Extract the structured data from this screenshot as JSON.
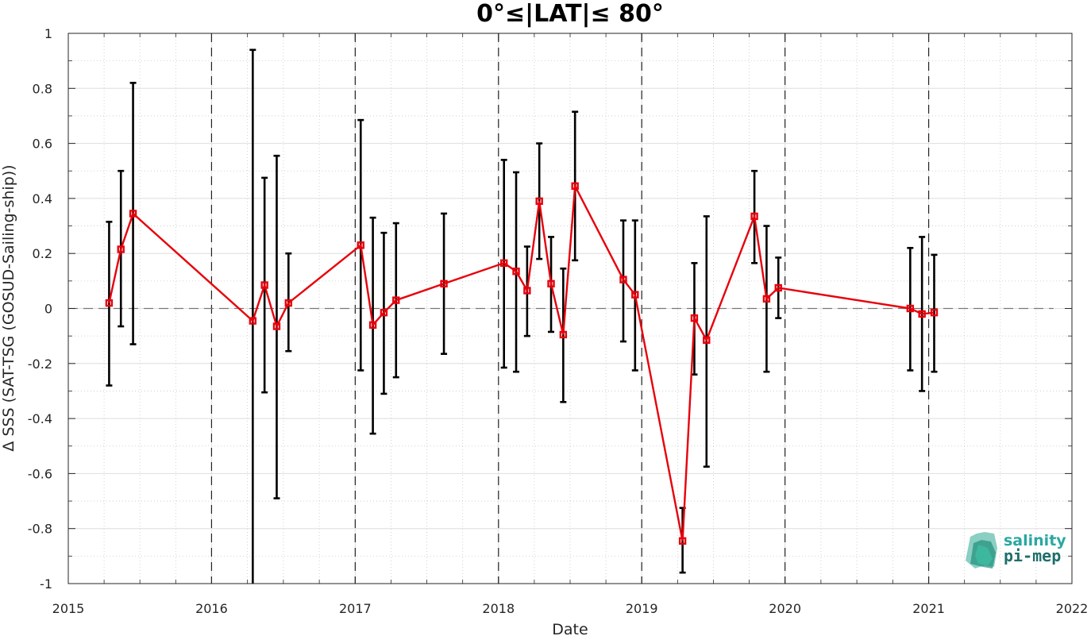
{
  "chart_data": {
    "type": "line",
    "title": "0°≤|LAT|≤ 80°",
    "xlabel": "Date",
    "ylabel": "Δ SSS (SAT-TSG (GOSUD-Sailing-ship))",
    "xlim": [
      "2015-01-01",
      "2022-01-01"
    ],
    "ylim": [
      -1,
      1
    ],
    "x_ticks": [
      "2015",
      "2016",
      "2017",
      "2018",
      "2019",
      "2020",
      "2021",
      "2022"
    ],
    "y_ticks": [
      "1",
      "0.8",
      "0.6",
      "0.4",
      "0.2",
      "0",
      "-0.2",
      "-0.4",
      "-0.6",
      "-0.8",
      "-1"
    ],
    "grid": true,
    "reference_line": 0,
    "year_markers": [
      "2016-01-01",
      "2017-01-01",
      "2018-01-01",
      "2019-01-01",
      "2020-01-01",
      "2021-01-01"
    ],
    "series": [
      {
        "color": "#e8000b",
        "errorbar_color": "#000000",
        "points": [
          {
            "x": "2015-04-15",
            "y": 0.02,
            "low": -0.28,
            "high": 0.315
          },
          {
            "x": "2015-05-15",
            "y": 0.215,
            "low": -0.065,
            "high": 0.5
          },
          {
            "x": "2015-06-15",
            "y": 0.345,
            "low": -0.13,
            "high": 0.82
          },
          {
            "x": "2016-04-15",
            "y": -0.045,
            "low": -1.0,
            "high": 0.94
          },
          {
            "x": "2016-05-15",
            "y": 0.085,
            "low": -0.305,
            "high": 0.475
          },
          {
            "x": "2016-06-15",
            "y": -0.065,
            "low": -0.69,
            "high": 0.555
          },
          {
            "x": "2016-07-15",
            "y": 0.02,
            "low": -0.155,
            "high": 0.2
          },
          {
            "x": "2017-01-15",
            "y": 0.23,
            "low": -0.225,
            "high": 0.685
          },
          {
            "x": "2017-02-15",
            "y": -0.06,
            "low": -0.455,
            "high": 0.33
          },
          {
            "x": "2017-03-15",
            "y": -0.015,
            "low": -0.31,
            "high": 0.275
          },
          {
            "x": "2017-04-15",
            "y": 0.03,
            "low": -0.25,
            "high": 0.31
          },
          {
            "x": "2017-08-15",
            "y": 0.09,
            "low": -0.165,
            "high": 0.345
          },
          {
            "x": "2018-01-15",
            "y": 0.165,
            "low": -0.215,
            "high": 0.54
          },
          {
            "x": "2018-02-15",
            "y": 0.135,
            "low": -0.23,
            "high": 0.495
          },
          {
            "x": "2018-03-15",
            "y": 0.065,
            "low": -0.1,
            "high": 0.225
          },
          {
            "x": "2018-04-15",
            "y": 0.39,
            "low": 0.18,
            "high": 0.6
          },
          {
            "x": "2018-05-15",
            "y": 0.09,
            "low": -0.085,
            "high": 0.26
          },
          {
            "x": "2018-06-15",
            "y": -0.095,
            "low": -0.34,
            "high": 0.145
          },
          {
            "x": "2018-07-15",
            "y": 0.445,
            "low": 0.175,
            "high": 0.715
          },
          {
            "x": "2018-11-15",
            "y": 0.105,
            "low": -0.12,
            "high": 0.32
          },
          {
            "x": "2018-12-15",
            "y": 0.05,
            "low": -0.225,
            "high": 0.32
          },
          {
            "x": "2019-04-15",
            "y": -0.845,
            "low": -0.96,
            "high": -0.725
          },
          {
            "x": "2019-05-15",
            "y": -0.035,
            "low": -0.24,
            "high": 0.165
          },
          {
            "x": "2019-06-15",
            "y": -0.115,
            "low": -0.575,
            "high": 0.335
          },
          {
            "x": "2019-10-15",
            "y": 0.335,
            "low": 0.165,
            "high": 0.5
          },
          {
            "x": "2019-11-15",
            "y": 0.035,
            "low": -0.23,
            "high": 0.3
          },
          {
            "x": "2019-12-15",
            "y": 0.075,
            "low": -0.035,
            "high": 0.185
          },
          {
            "x": "2020-11-15",
            "y": 0.0,
            "low": -0.225,
            "high": 0.22
          },
          {
            "x": "2020-12-15",
            "y": -0.02,
            "low": -0.3,
            "high": 0.26
          },
          {
            "x": "2021-01-15",
            "y": -0.015,
            "low": -0.23,
            "high": 0.195
          }
        ]
      }
    ]
  },
  "logo": {
    "line1": "salinity",
    "line2": "pi-mep",
    "color1": "#2aa8a0",
    "color2": "#1f6e6a"
  }
}
